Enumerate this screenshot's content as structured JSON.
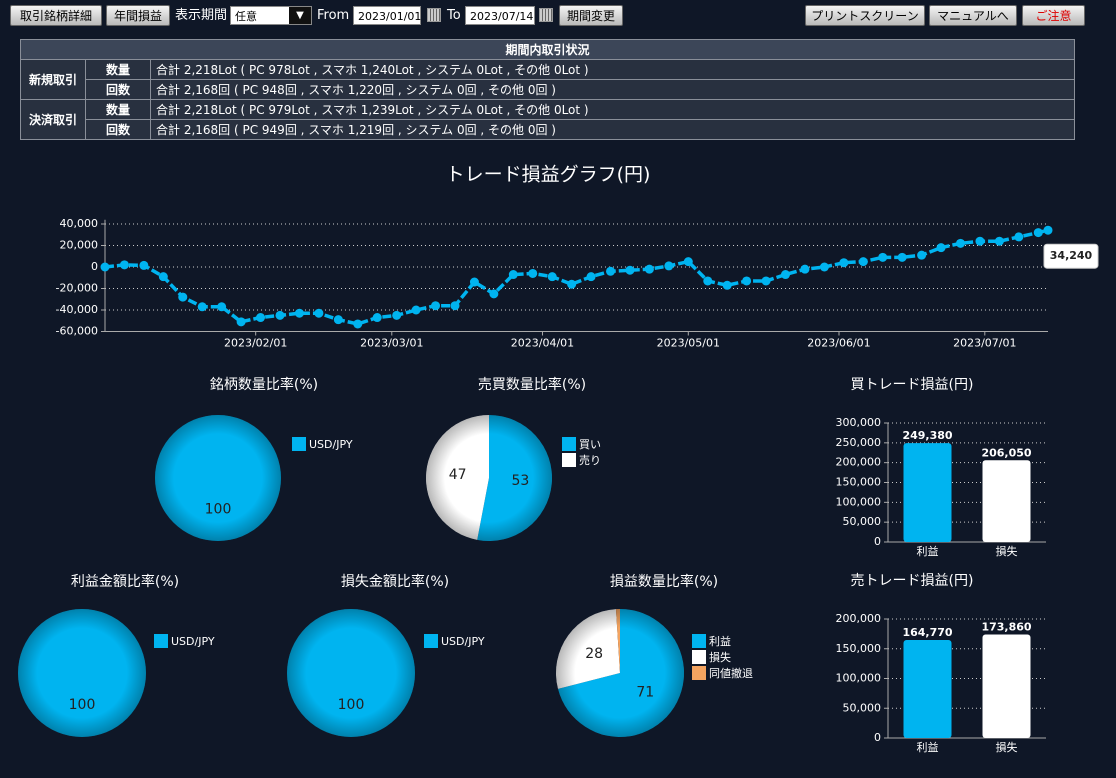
{
  "toolbar": {
    "buttons_left": [
      "取引銘柄詳細",
      "年間損益"
    ],
    "period_label": "表示期間",
    "period_select": "任意",
    "from_label": "From",
    "from_date": "2023/01/01",
    "to_label": "To",
    "to_date": "2023/07/14",
    "change_button": "期間変更",
    "buttons_right": [
      "プリントスクリーン",
      "マニュアルへ",
      "ご注意"
    ]
  },
  "table": {
    "title": "期間内取引状況",
    "groups": [
      {
        "label": "新規取引",
        "rows": [
          {
            "label": "数量",
            "text": "合計 2,218Lot ( PC 978Lot , スマホ 1,240Lot , システム 0Lot , その他 0Lot )"
          },
          {
            "label": "回数",
            "text": "合計 2,168回 ( PC 948回 , スマホ 1,220回 , システム 0回 , その他 0回 )"
          }
        ]
      },
      {
        "label": "決済取引",
        "rows": [
          {
            "label": "数量",
            "text": "合計 2,218Lot ( PC 979Lot , スマホ 1,239Lot , システム 0Lot , その他 0Lot )"
          },
          {
            "label": "回数",
            "text": "合計 2,168回 ( PC 949回 , スマホ 1,219回 , システム 0回 , その他 0回 )"
          }
        ]
      }
    ]
  },
  "chart_data": [
    {
      "type": "line",
      "title": "トレード損益グラフ(円)",
      "color": "#00b4f0",
      "grid": true,
      "x": [
        "2023/01/01",
        "2023/01/05",
        "2023/01/09",
        "2023/01/13",
        "2023/01/17",
        "2023/01/21",
        "2023/01/25",
        "2023/01/29",
        "2023/02/02",
        "2023/02/06",
        "2023/02/10",
        "2023/02/14",
        "2023/02/18",
        "2023/02/22",
        "2023/02/26",
        "2023/03/02",
        "2023/03/06",
        "2023/03/10",
        "2023/03/14",
        "2023/03/18",
        "2023/03/22",
        "2023/03/26",
        "2023/03/30",
        "2023/04/03",
        "2023/04/07",
        "2023/04/11",
        "2023/04/15",
        "2023/04/19",
        "2023/04/23",
        "2023/04/27",
        "2023/05/01",
        "2023/05/05",
        "2023/05/09",
        "2023/05/13",
        "2023/05/17",
        "2023/05/21",
        "2023/05/25",
        "2023/05/29",
        "2023/06/02",
        "2023/06/06",
        "2023/06/10",
        "2023/06/14",
        "2023/06/18",
        "2023/06/22",
        "2023/06/26",
        "2023/06/30",
        "2023/07/04",
        "2023/07/08",
        "2023/07/12",
        "2023/07/14"
      ],
      "values": [
        0,
        2000,
        1500,
        -9000,
        -28000,
        -37000,
        -37000,
        -51000,
        -47000,
        -45000,
        -43000,
        -43000,
        -49000,
        -53000,
        -47000,
        -45000,
        -40000,
        -36000,
        -36000,
        -14000,
        -25000,
        -7000,
        -6000,
        -9000,
        -16000,
        -9000,
        -4000,
        -3000,
        -2000,
        1000,
        5000,
        -13000,
        -17000,
        -13000,
        -13000,
        -7000,
        -2000,
        0,
        4000,
        5000,
        9000,
        9000,
        11000,
        18000,
        22000,
        24000,
        24000,
        28000,
        32000,
        34240
      ],
      "value_labels": [
        null,
        null,
        null,
        null,
        null,
        null,
        null,
        null,
        null,
        null,
        null,
        null,
        null,
        null,
        null,
        null,
        null,
        null,
        null,
        null,
        null,
        null,
        null,
        null,
        null,
        null,
        null,
        null,
        null,
        null,
        null,
        null,
        null,
        null,
        null,
        null,
        null,
        null,
        null,
        null,
        null,
        null,
        null,
        null,
        null,
        null,
        null,
        null,
        null,
        "34,240"
      ],
      "xlim": [
        "2023/01/01",
        "2023/07/14"
      ],
      "xticks": [
        "2023/02/01",
        "2023/03/01",
        "2023/04/01",
        "2023/05/01",
        "2023/06/01",
        "2023/07/01"
      ],
      "ylim": [
        -60000,
        44000
      ],
      "yticks": [
        {
          "value": -60000,
          "label": "-60,000"
        },
        {
          "value": -40000,
          "label": "-40,000"
        },
        {
          "value": -20000,
          "label": "-20,000"
        },
        0,
        {
          "value": 20000,
          "label": "20,000"
        },
        {
          "value": 40000,
          "label": "40,000"
        }
      ]
    },
    {
      "type": "pie",
      "title": "銘柄数量比率(%)",
      "categories": [
        "USD/JPY"
      ],
      "values": [
        100
      ],
      "colors": [
        "#00b4f0"
      ]
    },
    {
      "type": "pie",
      "title": "売買数量比率(%)",
      "categories": [
        "買い",
        "売り"
      ],
      "values": [
        53,
        47
      ],
      "colors": [
        "#00b4f0",
        "#ffffff"
      ]
    },
    {
      "type": "bar",
      "title": "買トレード損益(円)",
      "categories": [
        "利益",
        "損失"
      ],
      "values": [
        249380,
        206050
      ],
      "value_labels": [
        "249,380",
        "206,050"
      ],
      "colors": [
        "#00b4f0",
        "#ffffff"
      ],
      "grid": true,
      "ylim": [
        0,
        300000
      ],
      "yticks": [
        0,
        {
          "value": 50000,
          "label": "50,000"
        },
        {
          "value": 100000,
          "label": "100,000"
        },
        {
          "value": 150000,
          "label": "150,000"
        },
        {
          "value": 200000,
          "label": "200,000"
        },
        {
          "value": 250000,
          "label": "250,000"
        },
        {
          "value": 300000,
          "label": "300,000"
        }
      ]
    },
    {
      "type": "pie",
      "title": "利益金額比率(%)",
      "categories": [
        "USD/JPY"
      ],
      "values": [
        100
      ],
      "colors": [
        "#00b4f0"
      ]
    },
    {
      "type": "pie",
      "title": "損失金額比率(%)",
      "categories": [
        "USD/JPY"
      ],
      "values": [
        100
      ],
      "colors": [
        "#00b4f0"
      ]
    },
    {
      "type": "pie",
      "title": "損益数量比率(%)",
      "categories": [
        "利益",
        "損失",
        "同値撤退"
      ],
      "values": [
        71,
        28,
        1
      ],
      "colors": [
        "#00b4f0",
        "#ffffff",
        "#f4a460"
      ]
    },
    {
      "type": "bar",
      "title": "売トレード損益(円)",
      "categories": [
        "利益",
        "損失"
      ],
      "values": [
        164770,
        173860
      ],
      "value_labels": [
        "164,770",
        "173,860"
      ],
      "colors": [
        "#00b4f0",
        "#ffffff"
      ],
      "grid": true,
      "ylim": [
        0,
        200000
      ],
      "yticks": [
        0,
        {
          "value": 50000,
          "label": "50,000"
        },
        {
          "value": 100000,
          "label": "100,000"
        },
        {
          "value": 150000,
          "label": "150,000"
        },
        {
          "value": 200000,
          "label": "200,000"
        }
      ]
    }
  ]
}
